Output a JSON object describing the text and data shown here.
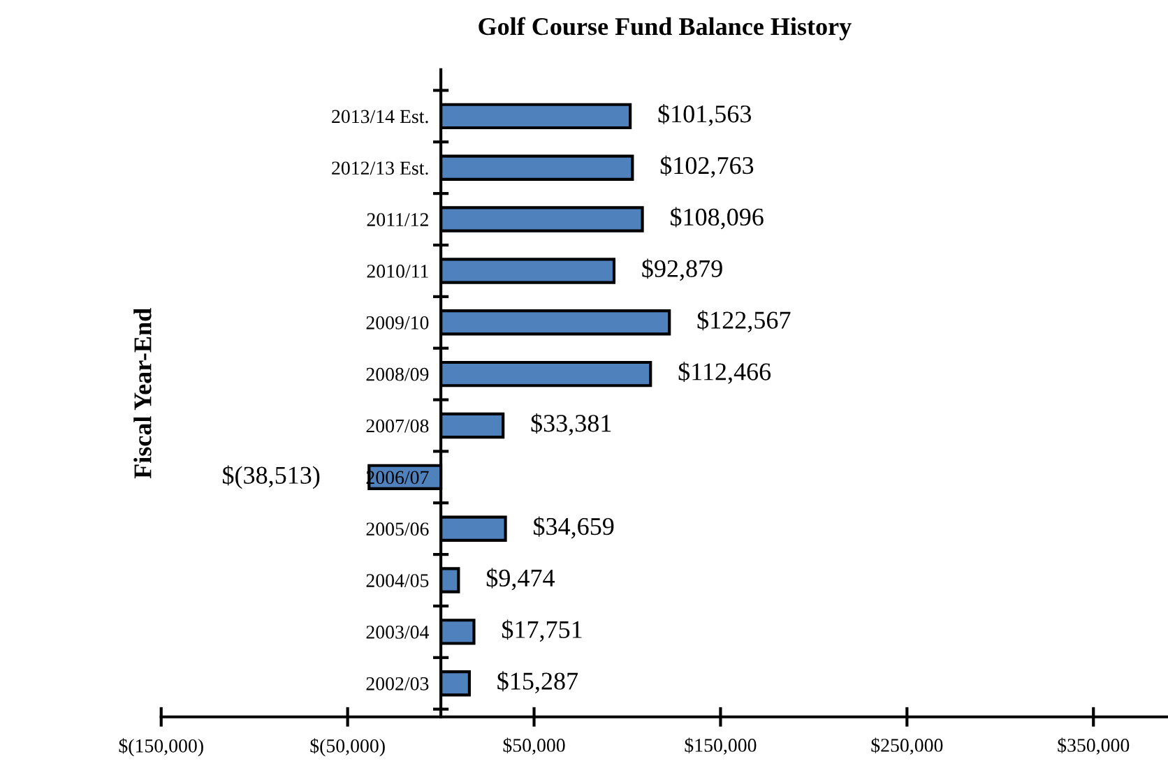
{
  "chart_data": {
    "type": "bar",
    "orientation": "horizontal",
    "title": "Golf Course Fund Balance History",
    "ylabel": "Fiscal Year-End",
    "categories": [
      "2013/14 Est.",
      "2012/13 Est.",
      "2011/12",
      "2010/11",
      "2009/10",
      "2008/09",
      "2007/08",
      "2006/07",
      "2005/06",
      "2004/05",
      "2003/04",
      "2002/03"
    ],
    "values": [
      101563,
      102763,
      108096,
      92879,
      122567,
      112466,
      33381,
      -38513,
      34659,
      9474,
      17751,
      15287
    ],
    "value_labels": [
      "$101,563",
      "$102,763",
      "$108,096",
      "$92,879",
      "$122,567",
      "$112,466",
      "$33,381",
      "$(38,513)",
      "$34,659",
      "$9,474",
      "$17,751",
      "$15,287"
    ],
    "color": "#4f81bd",
    "xlim": [
      -150000,
      390000
    ],
    "xticks": [
      {
        "value": -150000,
        "label": "$(150,000)"
      },
      {
        "value": -50000,
        "label": "$(50,000)"
      },
      {
        "value": 50000,
        "label": "$50,000"
      },
      {
        "value": 150000,
        "label": "$150,000"
      },
      {
        "value": 250000,
        "label": "$250,000"
      },
      {
        "value": 350000,
        "label": "$350,000"
      }
    ],
    "grid": false,
    "legend": false
  }
}
